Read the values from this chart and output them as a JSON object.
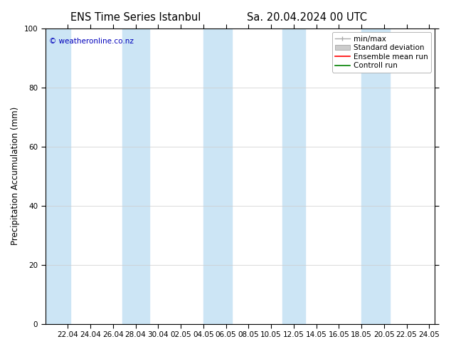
{
  "title1": "ENS Time Series Istanbul",
  "title2": "Sa. 20.04.2024 00 UTC",
  "ylabel": "Precipitation Accumulation (mm)",
  "ylim": [
    0,
    100
  ],
  "yticks": [
    0,
    20,
    40,
    60,
    80,
    100
  ],
  "xtick_labels": [
    "22.04",
    "24.04",
    "26.04",
    "28.04",
    "30.04",
    "02.05",
    "04.05",
    "06.05",
    "08.05",
    "10.05",
    "12.05",
    "14.05",
    "16.05",
    "18.05",
    "20.05",
    "22.05",
    "24.05"
  ],
  "xtick_positions": [
    2,
    4,
    6,
    8,
    10,
    12,
    14,
    16,
    18,
    20,
    22,
    24,
    26,
    28,
    30,
    32,
    34
  ],
  "watermark": "© weatheronline.co.nz",
  "watermark_color": "#0000bb",
  "bg_color": "#ffffff",
  "plot_bg_color": "#ffffff",
  "band_color": "#cce5f5",
  "band_alpha": 1.0,
  "band_positions": [
    [
      0.0,
      2.2
    ],
    [
      6.8,
      9.2
    ],
    [
      14.0,
      16.5
    ],
    [
      21.0,
      23.0
    ],
    [
      28.0,
      30.5
    ]
  ],
  "legend_items": [
    {
      "label": "min/max",
      "color": "#aaaaaa",
      "type": "errorbar"
    },
    {
      "label": "Standard deviation",
      "color": "#cccccc",
      "type": "bar"
    },
    {
      "label": "Ensemble mean run",
      "color": "#ff0000",
      "type": "line"
    },
    {
      "label": "Controll run",
      "color": "#008000",
      "type": "line"
    }
  ],
  "xlim": [
    0.0,
    34.5
  ],
  "title_fontsize": 10.5,
  "tick_fontsize": 7.5,
  "legend_fontsize": 7.5,
  "ylabel_fontsize": 8.5
}
